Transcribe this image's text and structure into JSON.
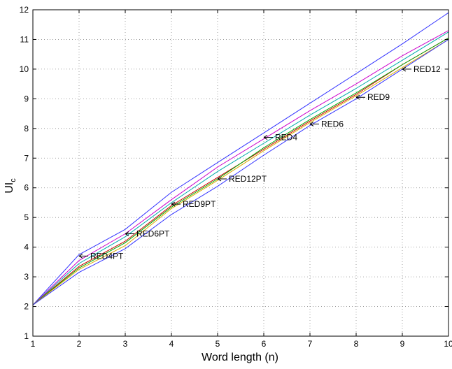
{
  "chart_data": {
    "type": "line",
    "title": "",
    "xlabel": "Word length (n)",
    "ylabel": {
      "main": "UI",
      "subscript": "c"
    },
    "xlim": [
      1,
      10
    ],
    "ylim": [
      1,
      12
    ],
    "xticks": [
      1,
      2,
      3,
      4,
      5,
      6,
      7,
      8,
      9,
      10
    ],
    "yticks": [
      1,
      2,
      3,
      4,
      5,
      6,
      7,
      8,
      9,
      10,
      11,
      12
    ],
    "grid": true,
    "legend": "none",
    "x": [
      1,
      2,
      3,
      4,
      5,
      6,
      7,
      8,
      9,
      10
    ],
    "series": [
      {
        "color": "#3333ff",
        "values": [
          2.05,
          3.75,
          4.6,
          5.85,
          6.85,
          7.85,
          8.85,
          9.85,
          10.85,
          11.9
        ]
      },
      {
        "color": "#cc00cc",
        "values": [
          2.05,
          3.55,
          4.45,
          5.6,
          6.7,
          7.65,
          8.6,
          9.5,
          10.45,
          11.3
        ]
      },
      {
        "color": "#00aaaa",
        "values": [
          2.05,
          3.45,
          4.35,
          5.5,
          6.55,
          7.5,
          8.45,
          9.35,
          10.3,
          11.25
        ]
      },
      {
        "color": "#cc0000",
        "values": [
          2.05,
          3.35,
          4.2,
          5.4,
          6.35,
          7.3,
          8.25,
          9.15,
          10.15,
          11.05
        ]
      },
      {
        "color": "#00aa00",
        "values": [
          2.05,
          3.3,
          4.15,
          5.35,
          6.3,
          7.35,
          8.3,
          9.2,
          10.15,
          11.05
        ]
      },
      {
        "color": "#ddaa00",
        "values": [
          2.05,
          3.25,
          4.05,
          5.3,
          6.25,
          7.25,
          8.2,
          9.1,
          10.05,
          11.0
        ]
      },
      {
        "color": "#3333ff",
        "values": [
          2.05,
          3.15,
          3.95,
          5.1,
          6.05,
          7.1,
          8.1,
          9.0,
          10.0,
          11.0
        ]
      }
    ],
    "annotations": [
      {
        "text": "RED4PT",
        "x": 2,
        "y": 3.7
      },
      {
        "text": "RED6PT",
        "x": 3,
        "y": 4.45
      },
      {
        "text": "RED9PT",
        "x": 4,
        "y": 5.45
      },
      {
        "text": "RED12PT",
        "x": 5,
        "y": 6.3
      },
      {
        "text": "RED4",
        "x": 6,
        "y": 7.7
      },
      {
        "text": "RED6",
        "x": 7,
        "y": 8.15
      },
      {
        "text": "RED9",
        "x": 8,
        "y": 9.05
      },
      {
        "text": "RED12",
        "x": 9,
        "y": 10.0
      }
    ]
  }
}
